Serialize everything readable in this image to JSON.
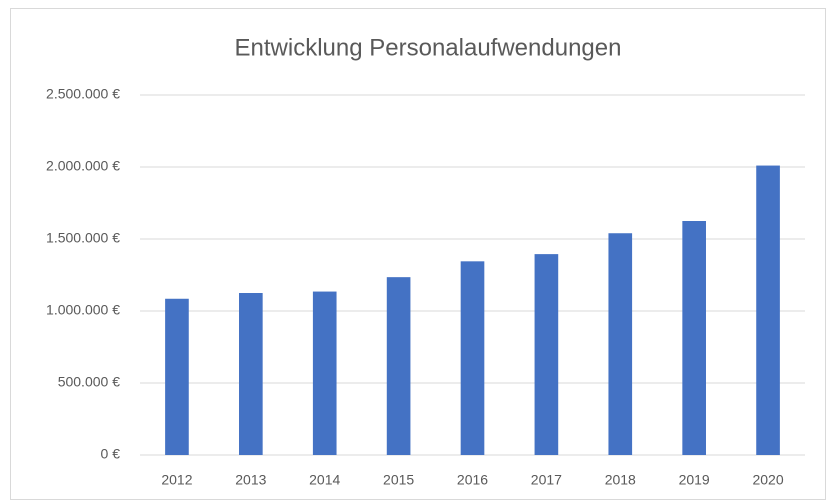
{
  "chart_data": {
    "type": "bar",
    "title": "Entwicklung Personalaufwendungen",
    "categories": [
      "2012",
      "2013",
      "2014",
      "2015",
      "2016",
      "2017",
      "2018",
      "2019",
      "2020"
    ],
    "values": [
      1085000,
      1125000,
      1135000,
      1235000,
      1345000,
      1395000,
      1540000,
      1625000,
      2010000
    ],
    "color": "#4472c4",
    "ylim": [
      0,
      2500000
    ],
    "yticks": [
      {
        "value": 0,
        "label": "0 €"
      },
      {
        "value": 500000,
        "label": "500.000 €"
      },
      {
        "value": 1000000,
        "label": "1.000.000 €"
      },
      {
        "value": 1500000,
        "label": "1.500.000 €"
      },
      {
        "value": 2000000,
        "label": "2.000.000 €"
      },
      {
        "value": 2500000,
        "label": "2.500.000 €"
      }
    ],
    "grid": true
  }
}
